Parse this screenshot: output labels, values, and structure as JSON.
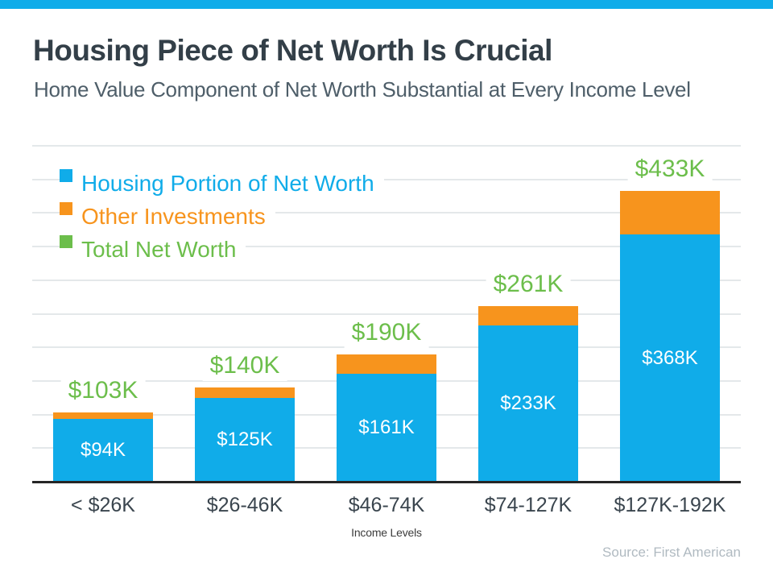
{
  "page": {
    "accent_color": "#10ACE9",
    "gridline_color": "#E4E8EA"
  },
  "header": {
    "title": "Housing Piece of Net Worth Is Crucial",
    "subtitle": "Home Value Component of Net Worth Substantial at Every Income Level"
  },
  "footer": {
    "source": "Source: First American"
  },
  "chart_data": {
    "type": "bar",
    "stacked": true,
    "title": "Housing Piece of Net Worth Is Crucial",
    "subtitle": "Home Value Component of Net Worth Substantial at Every Income Level",
    "categories": [
      "< $26K",
      "$26-46K",
      "$46-74K",
      "$74-127K",
      "$127K-192K"
    ],
    "series": [
      {
        "name": "Housing Portion of Net Worth",
        "color": "#10ACE9",
        "values": [
          94,
          125,
          161,
          233,
          368
        ],
        "labels": [
          "$94K",
          "$125K",
          "$161K",
          "$233K",
          "$368K"
        ]
      },
      {
        "name": "Other Investments",
        "color": "#F7941D",
        "values": [
          9,
          15,
          29,
          28,
          65
        ]
      }
    ],
    "totals": {
      "name": "Total Net Worth",
      "color": "#6CBE4B",
      "values": [
        103,
        140,
        190,
        261,
        433
      ],
      "labels": [
        "$103K",
        "$140K",
        "$190K",
        "$261K",
        "$433K"
      ]
    },
    "legend": [
      {
        "label": "Housing Portion of Net Worth",
        "color": "#10ACE9"
      },
      {
        "label": "Other Investments",
        "color": "#F7941D"
      },
      {
        "label": "Total Net Worth",
        "color": "#6CBE4B"
      }
    ],
    "legend_position": "top-left",
    "xlabel": "Income Levels",
    "ylabel": "",
    "ylim": [
      0,
      500
    ],
    "grid": true,
    "grid_step": 50
  }
}
